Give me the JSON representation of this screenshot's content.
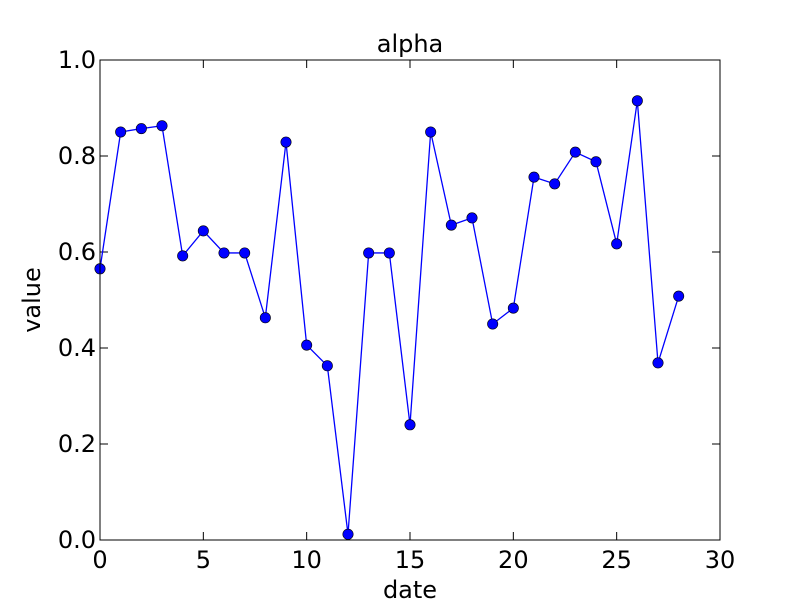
{
  "chart_data": {
    "type": "line",
    "title": "alpha",
    "xlabel": "date",
    "ylabel": "value",
    "xlim": [
      0,
      30
    ],
    "ylim": [
      0.0,
      1.0
    ],
    "x_ticks": [
      "0",
      "5",
      "10",
      "15",
      "20",
      "25",
      "30"
    ],
    "y_ticks": [
      "0.0",
      "0.2",
      "0.4",
      "0.6",
      "0.8",
      "1.0"
    ],
    "grid": false,
    "series": [
      {
        "color": "#0000ff",
        "marker": "circle",
        "x": [
          0,
          1,
          2,
          3,
          4,
          5,
          6,
          7,
          8,
          9,
          10,
          11,
          12,
          13,
          14,
          15,
          16,
          17,
          18,
          19,
          20,
          21,
          22,
          23,
          24,
          25,
          26,
          27,
          28
        ],
        "y": [
          0.565,
          0.85,
          0.857,
          0.863,
          0.592,
          0.644,
          0.598,
          0.598,
          0.463,
          0.829,
          0.406,
          0.363,
          0.012,
          0.598,
          0.598,
          0.24,
          0.85,
          0.656,
          0.671,
          0.45,
          0.483,
          0.756,
          0.742,
          0.808,
          0.788,
          0.617,
          0.915,
          0.369,
          0.508
        ]
      }
    ]
  }
}
